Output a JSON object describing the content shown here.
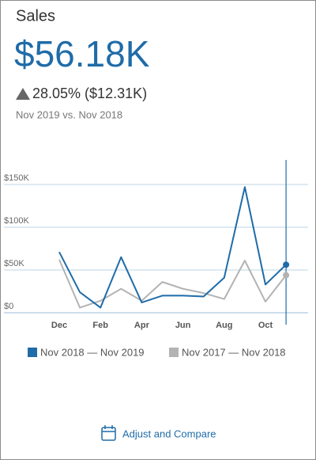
{
  "chart_data": {
    "type": "line",
    "title": "Sales",
    "kpi": {
      "value": "$56.18K",
      "change": "28.05% ($12.31K)",
      "comparison": "Nov 2019 vs. Nov 2018"
    },
    "categories": [
      "Dec",
      null,
      "Feb",
      null,
      "Apr",
      null,
      "Jun",
      null,
      "Aug",
      null,
      "Oct",
      null
    ],
    "series": [
      {
        "name": "Nov 2018 — Nov 2019",
        "color": "#1f6ca8",
        "values": [
          71000,
          24000,
          6000,
          65000,
          12000,
          20000,
          20000,
          19000,
          41000,
          147000,
          33000,
          56180
        ]
      },
      {
        "name": "Nov 2017 — Nov 2018",
        "color": "#b3b3b3",
        "values": [
          62000,
          6000,
          14000,
          28000,
          14000,
          36000,
          28000,
          23000,
          16000,
          61000,
          13000,
          43870
        ]
      }
    ],
    "ylim": [
      0,
      150000
    ],
    "yticks": [
      {
        "value": 0,
        "label": "$0"
      },
      {
        "value": 50000,
        "label": "$50K"
      },
      {
        "value": 100000,
        "label": "$100K"
      },
      {
        "value": 150000,
        "label": "$150K"
      }
    ],
    "grid": true
  },
  "action": "Adjust and Compare"
}
